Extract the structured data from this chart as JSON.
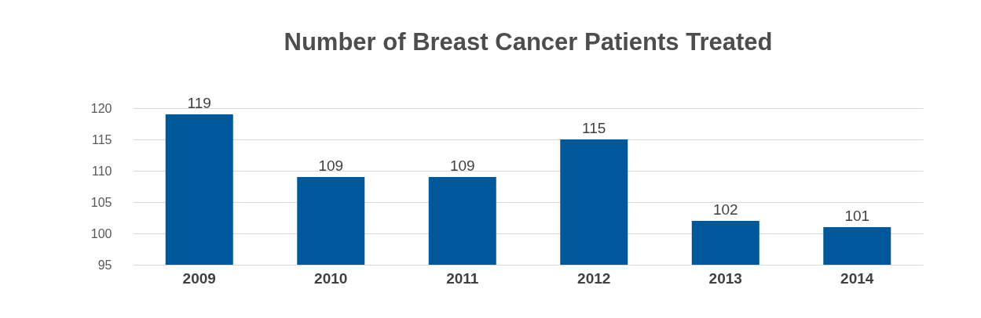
{
  "chart_data": {
    "type": "bar",
    "title": "Number of Breast Cancer Patients Treated",
    "categories": [
      "2009",
      "2010",
      "2011",
      "2012",
      "2013",
      "2014"
    ],
    "values": [
      119,
      109,
      109,
      115,
      102,
      101
    ],
    "color": "#00589a",
    "ylim": [
      95,
      120
    ],
    "yticks": [
      95,
      100,
      105,
      110,
      115,
      120
    ],
    "grid": "y",
    "data_labels": true
  }
}
